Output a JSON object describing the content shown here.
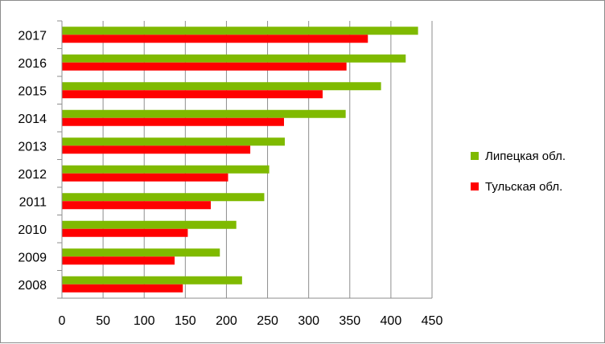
{
  "chart_data": {
    "type": "bar",
    "orientation": "horizontal",
    "categories": [
      "2008",
      "2009",
      "2010",
      "2011",
      "2012",
      "2013",
      "2014",
      "2015",
      "2016",
      "2017"
    ],
    "series": [
      {
        "name": "Липецкая обл.",
        "color": "#7fba00",
        "values": [
          219,
          192,
          212,
          246,
          252,
          271,
          345,
          388,
          418,
          433
        ]
      },
      {
        "name": "Тульская обл.",
        "color": "#ff0000",
        "values": [
          147,
          137,
          153,
          181,
          202,
          229,
          270,
          317,
          346,
          372
        ]
      }
    ],
    "x_ticks": [
      "0",
      "50",
      "100",
      "150",
      "200",
      "250",
      "300",
      "350",
      "400",
      "450"
    ],
    "xlim": [
      0,
      450
    ],
    "title": "",
    "xlabel": "",
    "ylabel": "",
    "grid": "vertical",
    "legend_position": "right"
  }
}
